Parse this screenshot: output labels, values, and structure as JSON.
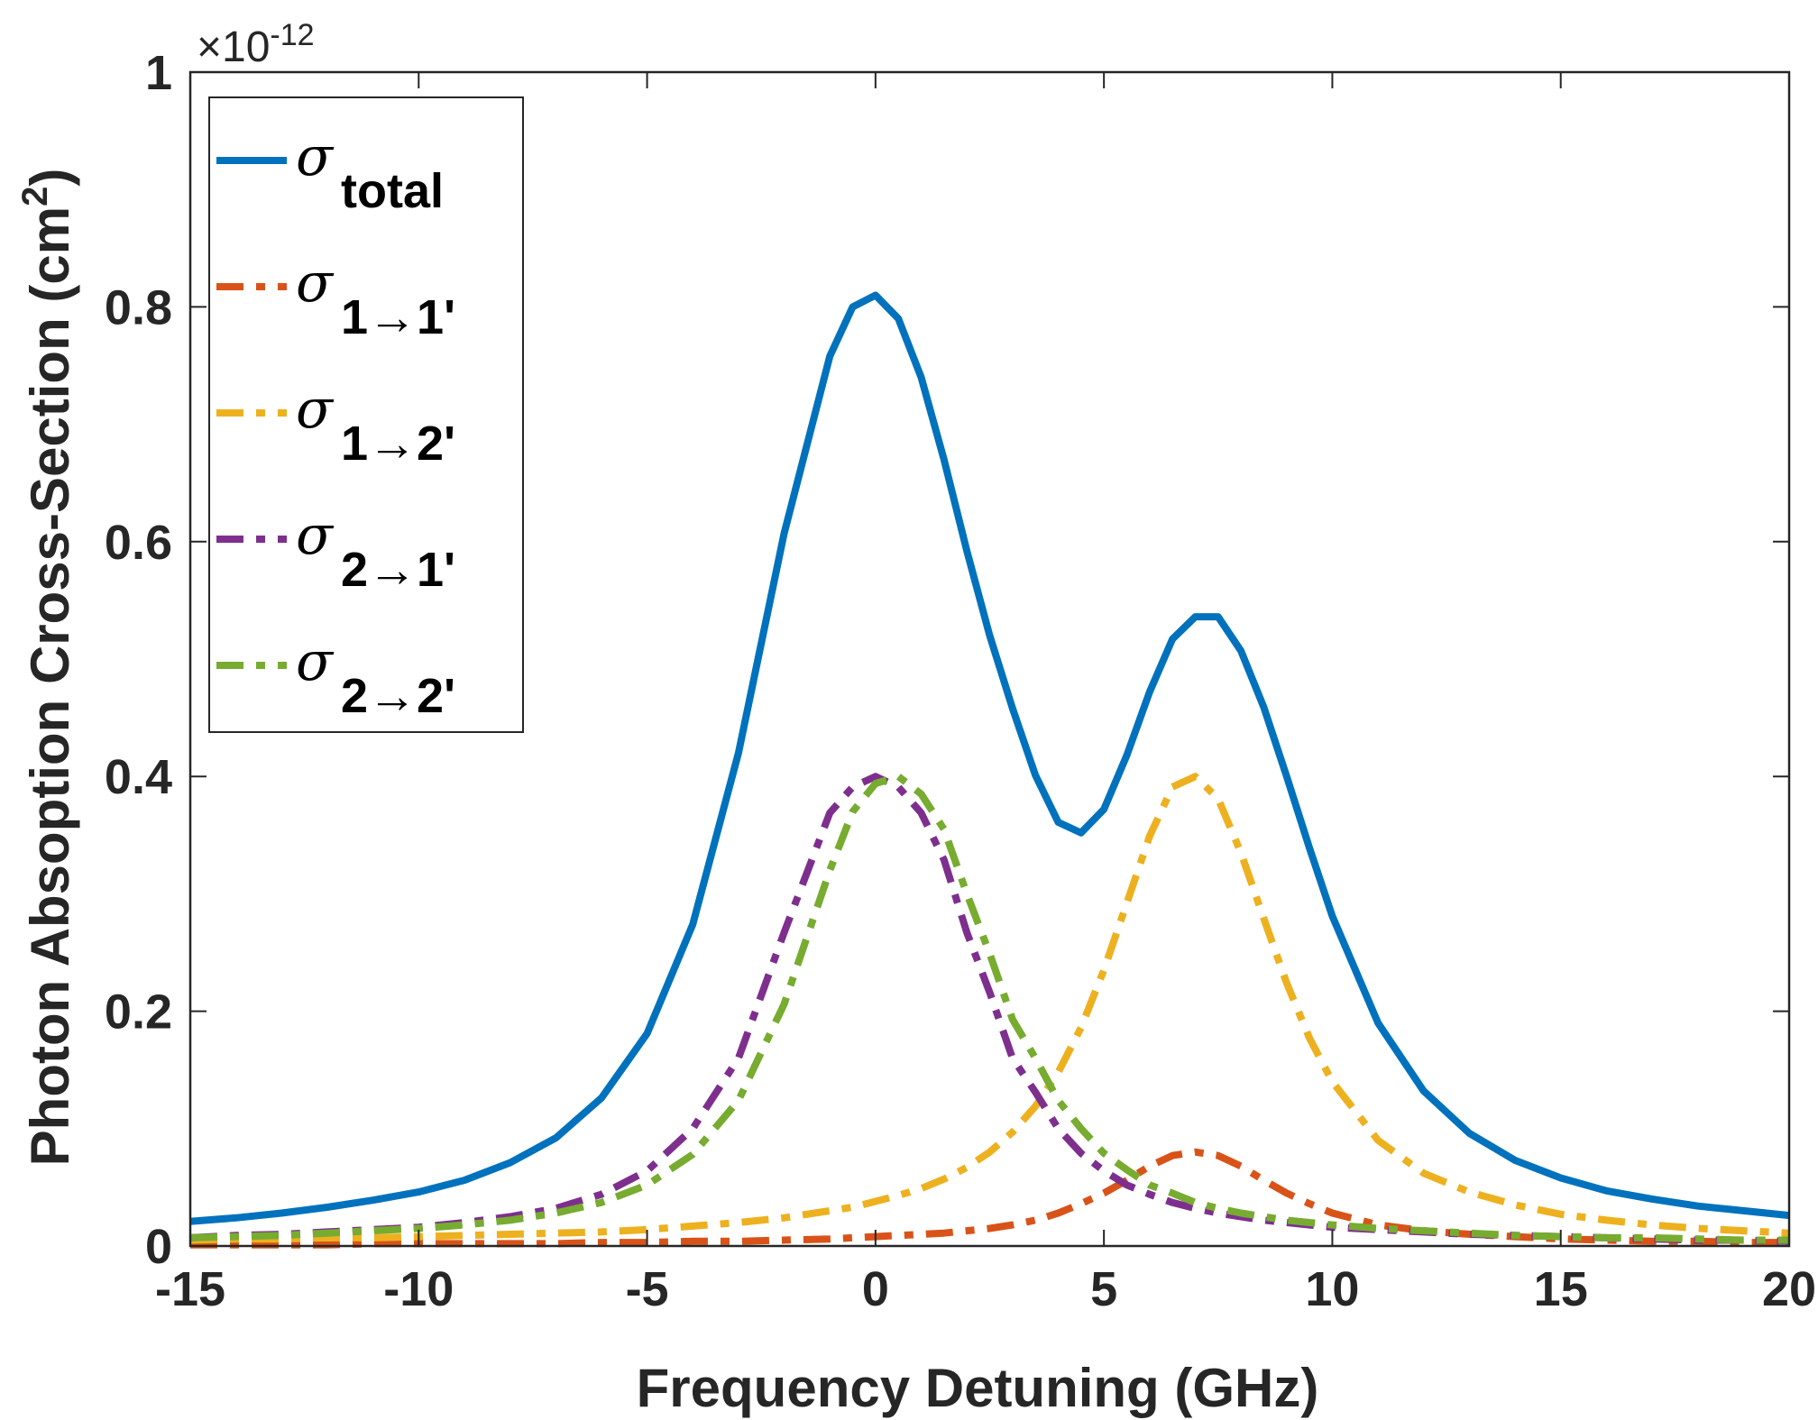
{
  "chart_data": {
    "type": "line",
    "xlabel": "Frequency Detuning (GHz)",
    "ylabel": "Photon Absoption Cross-Section (cm",
    "ylabel_sup": "2",
    "ylabel_close": ")",
    "y_exponent_prefix": "×10",
    "y_exponent": "-12",
    "xlim": [
      -15,
      20
    ],
    "ylim": [
      0,
      1
    ],
    "x_ticks": [
      -15,
      -10,
      -5,
      0,
      5,
      10,
      15,
      20
    ],
    "x_tick_labels": [
      "-15",
      "-10",
      "-5",
      "0",
      "5",
      "10",
      "15",
      "20"
    ],
    "y_ticks": [
      0,
      0.2,
      0.4,
      0.6,
      0.8,
      1
    ],
    "y_tick_labels": [
      "0",
      "0.2",
      "0.4",
      "0.6",
      "0.8",
      "1"
    ],
    "grid": false,
    "legend_position": "top-left",
    "x": [
      -15,
      -14,
      -13,
      -12,
      -11,
      -10,
      -9,
      -8,
      -7,
      -6,
      -5,
      -4,
      -3,
      -2,
      -1,
      -0.5,
      0,
      0.5,
      1,
      1.5,
      2,
      2.5,
      3,
      3.5,
      4,
      4.5,
      5,
      5.5,
      6,
      6.5,
      7,
      7.5,
      8,
      8.5,
      9,
      9.5,
      10,
      11,
      12,
      13,
      14,
      15,
      16,
      17,
      18,
      19,
      20
    ],
    "series": [
      {
        "symbol": "σ",
        "subscript": "total",
        "color": "#0072BD",
        "style": "solid",
        "values": [
          0.021,
          0.024,
          0.028,
          0.033,
          0.039,
          0.046,
          0.056,
          0.071,
          0.092,
          0.126,
          0.181,
          0.274,
          0.42,
          0.607,
          0.758,
          0.8,
          0.81,
          0.79,
          0.74,
          0.67,
          0.592,
          0.52,
          0.458,
          0.401,
          0.361,
          0.352,
          0.372,
          0.418,
          0.472,
          0.517,
          0.536,
          0.536,
          0.507,
          0.459,
          0.4,
          0.339,
          0.281,
          0.19,
          0.132,
          0.096,
          0.073,
          0.058,
          0.047,
          0.04,
          0.034,
          0.03,
          0.026
        ]
      },
      {
        "symbol": "σ",
        "subscript": "1→1'",
        "color": "#D95319",
        "style": "dashdot",
        "values": [
          0.001,
          0.001,
          0.001,
          0.001,
          0.002,
          0.002,
          0.002,
          0.002,
          0.002,
          0.003,
          0.003,
          0.004,
          0.004,
          0.005,
          0.006,
          0.007,
          0.008,
          0.009,
          0.01,
          0.011,
          0.013,
          0.015,
          0.018,
          0.022,
          0.028,
          0.036,
          0.045,
          0.056,
          0.068,
          0.077,
          0.08,
          0.077,
          0.068,
          0.056,
          0.045,
          0.036,
          0.028,
          0.018,
          0.013,
          0.01,
          0.008,
          0.006,
          0.005,
          0.004,
          0.004,
          0.003,
          0.003
        ]
      },
      {
        "symbol": "σ",
        "subscript": "1→2'",
        "color": "#EDB120",
        "style": "dashdot",
        "values": [
          0.005,
          0.006,
          0.006,
          0.007,
          0.007,
          0.008,
          0.009,
          0.01,
          0.011,
          0.012,
          0.014,
          0.017,
          0.02,
          0.024,
          0.03,
          0.033,
          0.038,
          0.043,
          0.049,
          0.057,
          0.067,
          0.08,
          0.097,
          0.119,
          0.148,
          0.186,
          0.235,
          0.292,
          0.349,
          0.391,
          0.4,
          0.381,
          0.335,
          0.279,
          0.224,
          0.177,
          0.14,
          0.09,
          0.062,
          0.046,
          0.035,
          0.027,
          0.022,
          0.018,
          0.015,
          0.013,
          0.011
        ]
      },
      {
        "symbol": "σ",
        "subscript": "2→1'",
        "color": "#7E2F8E",
        "style": "dashdot",
        "values": [
          0.007,
          0.009,
          0.01,
          0.012,
          0.014,
          0.016,
          0.02,
          0.025,
          0.032,
          0.044,
          0.064,
          0.1,
          0.16,
          0.267,
          0.369,
          0.391,
          0.4,
          0.391,
          0.369,
          0.329,
          0.267,
          0.216,
          0.16,
          0.131,
          0.1,
          0.079,
          0.064,
          0.052,
          0.044,
          0.037,
          0.032,
          0.028,
          0.025,
          0.022,
          0.02,
          0.018,
          0.016,
          0.014,
          0.012,
          0.01,
          0.009,
          0.008,
          0.007,
          0.006,
          0.005,
          0.005,
          0.004
        ]
      },
      {
        "symbol": "σ",
        "subscript": "2→2'",
        "color": "#77AC30",
        "style": "dashdot",
        "values": [
          0.007,
          0.008,
          0.009,
          0.011,
          0.013,
          0.015,
          0.018,
          0.022,
          0.028,
          0.037,
          0.052,
          0.078,
          0.124,
          0.206,
          0.32,
          0.37,
          0.394,
          0.4,
          0.385,
          0.355,
          0.3,
          0.249,
          0.193,
          0.16,
          0.124,
          0.1,
          0.079,
          0.065,
          0.052,
          0.045,
          0.037,
          0.032,
          0.028,
          0.025,
          0.022,
          0.02,
          0.018,
          0.015,
          0.013,
          0.011,
          0.009,
          0.008,
          0.007,
          0.007,
          0.006,
          0.005,
          0.005
        ]
      }
    ]
  }
}
